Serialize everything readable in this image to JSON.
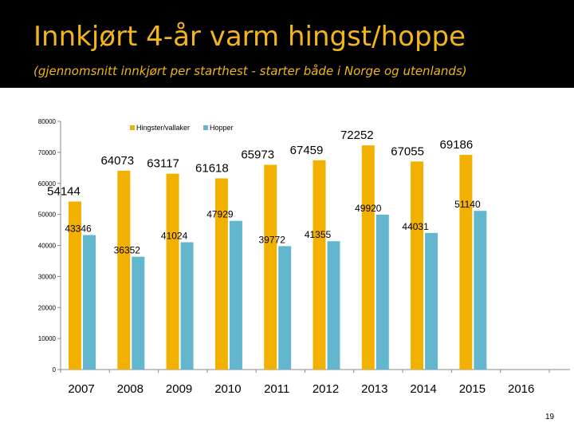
{
  "slide": {
    "title": "Innkjørt 4-år varm hingst/hoppe",
    "subtitle": "(gjennomsnitt innkjørt per starthest - starter både i Norge og utenlands)",
    "page_number": "19"
  },
  "colors": {
    "header_bg": "#000000",
    "title": "#f2b51a",
    "series_1": "#f2b000",
    "series_2": "#62b7cf"
  },
  "chart_data": {
    "type": "bar",
    "categories": [
      "2007",
      "2008",
      "2009",
      "2010",
      "2011",
      "2012",
      "2013",
      "2014",
      "2015",
      "2016"
    ],
    "series": [
      {
        "name": "Hingster/vallaker",
        "values": [
          54144,
          64073,
          63117,
          61618,
          65973,
          67459,
          72252,
          67055,
          69186,
          null
        ]
      },
      {
        "name": "Hopper",
        "values": [
          43346,
          36352,
          41024,
          47929,
          39772,
          41355,
          49920,
          44031,
          51140,
          null
        ]
      }
    ],
    "ylim": [
      0,
      80000
    ],
    "yticks": [
      "0",
      "10000",
      "20000",
      "30000",
      "40000",
      "50000",
      "60000",
      "70000",
      "80000"
    ],
    "grid": false,
    "legend_position": "top",
    "title": "",
    "xlabel": "",
    "ylabel": ""
  }
}
